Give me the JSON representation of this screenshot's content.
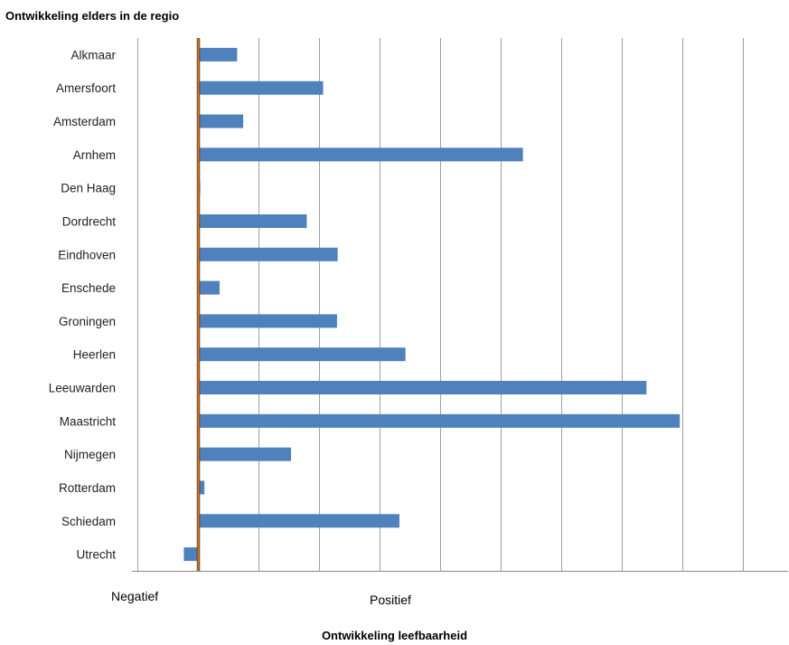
{
  "chart_data": {
    "type": "bar",
    "orientation": "horizontal",
    "title": "Ontwikkeling elders in de regio",
    "xlabel": "Ontwikkeling leefbaarheid",
    "x_negative_label": "Negatief",
    "x_positive_label": "Positief",
    "categories": [
      "Alkmaar",
      "Amersfoort",
      "Amsterdam",
      "Arnhem",
      "Den Haag",
      "Dordrecht",
      "Eindhoven",
      "Enschede",
      "Groningen",
      "Heerlen",
      "Leeuwarden",
      "Maastricht",
      "Nijmegen",
      "Rotterdam",
      "Schiedam",
      "Utrecht"
    ],
    "values": [
      0.64,
      2.06,
      0.74,
      5.36,
      0.03,
      1.79,
      2.3,
      0.35,
      2.29,
      3.42,
      7.4,
      7.95,
      1.53,
      0.1,
      3.32,
      -0.24
    ],
    "xlim": [
      -1,
      10
    ],
    "grid": true,
    "colors": {
      "bar": "#4f81bd",
      "zero_line": "#e46c0a",
      "zero_line_outline": "#404040",
      "grid": "#a0a0a0",
      "axis": "#888888"
    }
  }
}
